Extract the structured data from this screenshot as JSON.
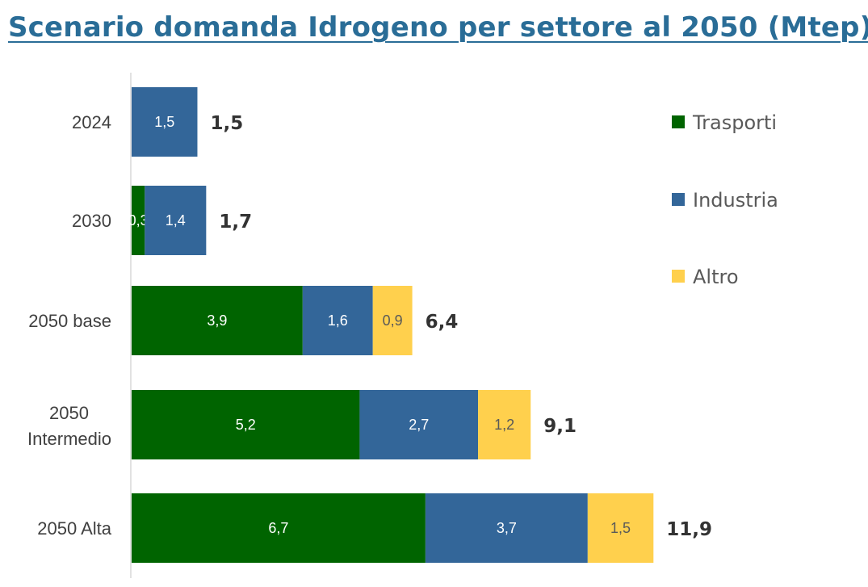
{
  "chart_data": {
    "type": "bar",
    "orientation": "horizontal",
    "stacked": true,
    "title": "Scenario domanda Idrogeno per settore al 2050 (Mtep)",
    "categories": [
      "2024",
      "2030",
      "2050 base",
      "2050 Intermedio",
      "2050 Alta"
    ],
    "category_lines": [
      [
        "2024"
      ],
      [
        "2030"
      ],
      [
        "2050 base"
      ],
      [
        "2050",
        "Intermedio"
      ],
      [
        "2050 Alta"
      ]
    ],
    "series": [
      {
        "name": "Trasporti",
        "color": "#006400",
        "values": [
          0,
          0.3,
          3.9,
          5.2,
          6.7
        ],
        "labels": [
          "",
          "0,3",
          "3,9",
          "5,2",
          "6,7"
        ]
      },
      {
        "name": "Industria",
        "color": "#336699",
        "values": [
          1.5,
          1.4,
          1.6,
          2.7,
          3.7
        ],
        "labels": [
          "1,5",
          "1,4",
          "1,6",
          "2,7",
          "3,7"
        ]
      },
      {
        "name": "Altro",
        "color": "#ffd04d",
        "values": [
          0,
          0,
          0.9,
          1.2,
          1.5
        ],
        "labels": [
          "",
          "",
          "0,9",
          "1,2",
          "1,5"
        ]
      }
    ],
    "totals": [
      1.5,
      1.7,
      6.4,
      9.1,
      11.9
    ],
    "total_labels": [
      "1,5",
      "1,7",
      "6,4",
      "9,1",
      "11,9"
    ],
    "xlim": [
      0,
      16.7
    ],
    "legend_position": "right",
    "grid": false
  }
}
